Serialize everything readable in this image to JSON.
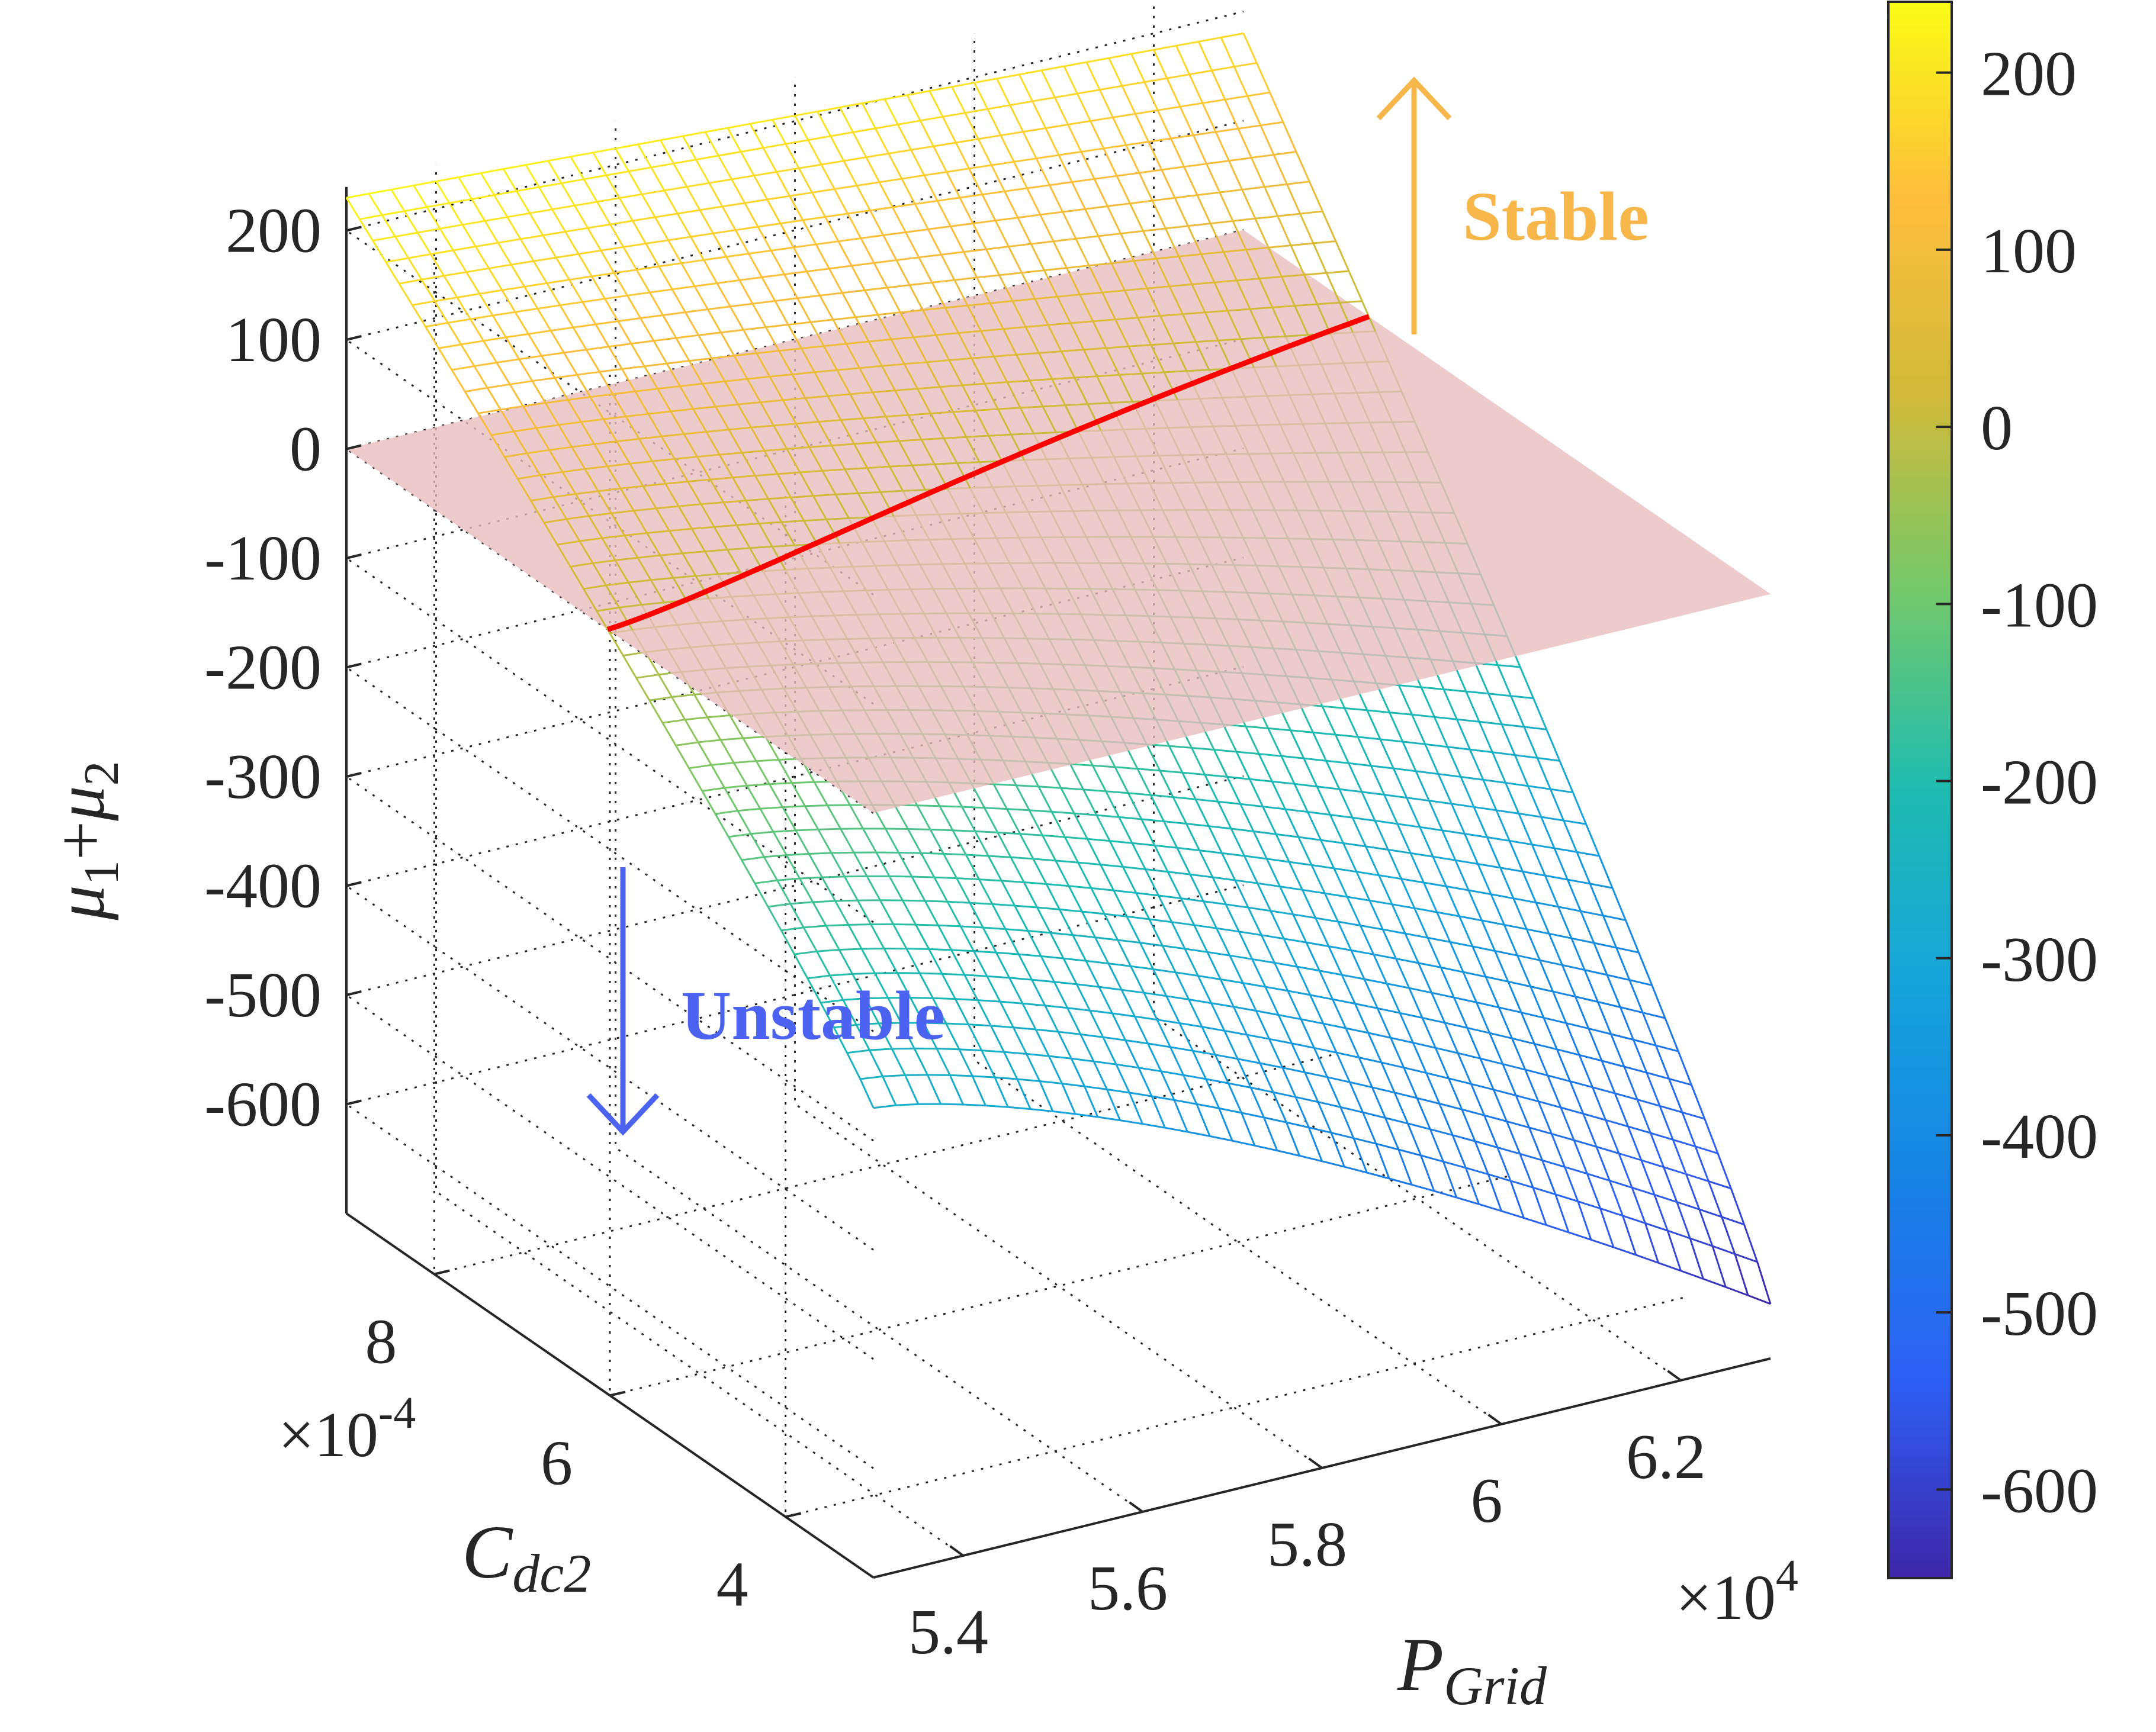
{
  "chart_data": {
    "type": "surface",
    "x_axis": {
      "label_main": "P",
      "label_sub": "Grid",
      "ticks": [
        "5.4",
        "5.6",
        "5.8",
        "6",
        "6.2"
      ],
      "tick_values": [
        54000,
        56000,
        58000,
        60000,
        62000
      ],
      "exponent_label": "×10",
      "exponent_power": "4",
      "range": [
        53000,
        63000
      ]
    },
    "y_axis": {
      "label_main": "C",
      "label_sub": "dc2",
      "ticks": [
        "4",
        "6",
        "8"
      ],
      "tick_values": [
        0.0004,
        0.0006,
        0.0008
      ],
      "exponent_label": "×10",
      "exponent_power": "-4",
      "range": [
        0.0003,
        0.0009
      ]
    },
    "z_axis": {
      "label_main_1": "μ",
      "label_sub_1": "1",
      "label_plus": "+",
      "label_main_2": "μ",
      "label_sub_2": "2",
      "ticks": [
        "200",
        "100",
        "0",
        "-100",
        "-200",
        "-300",
        "-400",
        "-500",
        "-600"
      ],
      "tick_values": [
        200,
        100,
        0,
        -100,
        -200,
        -300,
        -400,
        -500,
        -600
      ],
      "range": [
        -700,
        240
      ]
    },
    "colorbar": {
      "ticks": [
        "200",
        "100",
        "0",
        "-100",
        "-200",
        "-300",
        "-400",
        "-500",
        "-600"
      ],
      "tick_values": [
        200,
        100,
        0,
        -100,
        -200,
        -300,
        -400,
        -500,
        -600
      ],
      "range": [
        -650,
        240
      ],
      "colormap": "parula"
    },
    "surface": {
      "z_corners": {
        "min_P_max_C": 230,
        "max_P_max_C": 180,
        "min_P_min_C": -270,
        "max_P_min_C": -650
      },
      "grid_lines": 40
    },
    "zero_plane": {
      "z": 0,
      "color": "#e8bcbc"
    },
    "stability_boundary": {
      "z": 0,
      "color": "#ff0000"
    },
    "annotations": {
      "stable": {
        "text": "Stable",
        "color": "#f7b64a"
      },
      "unstable": {
        "text": "Unstable",
        "color": "#4c62f0"
      }
    },
    "grid": true
  }
}
